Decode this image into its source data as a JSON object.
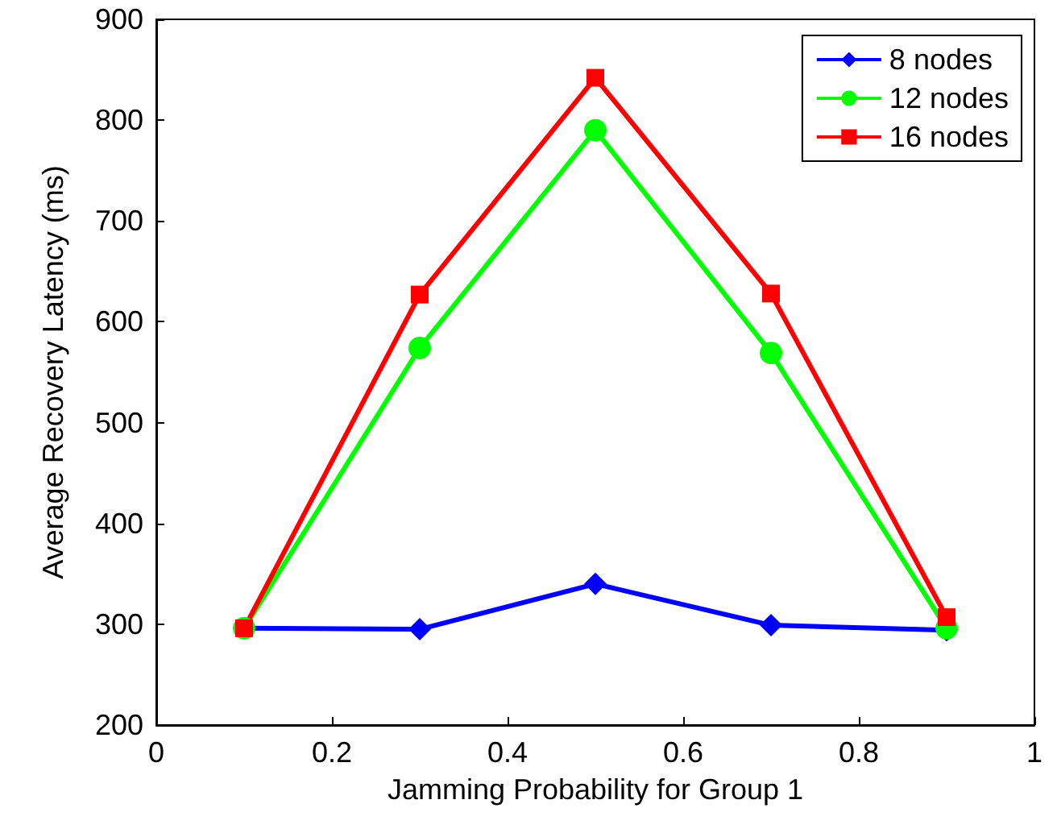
{
  "chart_data": {
    "type": "line",
    "xlabel": "Jamming Probability for Group 1",
    "ylabel": "Average Recovery Latency (ms)",
    "x": [
      0.1,
      0.3,
      0.5,
      0.7,
      0.9
    ],
    "xlim": [
      0,
      1
    ],
    "xticks": [
      0,
      0.2,
      0.4,
      0.6,
      0.8,
      1
    ],
    "ylim": [
      200,
      900
    ],
    "yticks": [
      200,
      300,
      400,
      500,
      600,
      700,
      800,
      900
    ],
    "grid": false,
    "legend": "top right",
    "line_style": "solid",
    "series": [
      {
        "name": "8 nodes",
        "color": "#0000ff",
        "marker": "diamond",
        "values": [
          296,
          295,
          340,
          299,
          294
        ]
      },
      {
        "name": "12 nodes",
        "color": "#00ff00",
        "marker": "circle",
        "values": [
          296,
          574,
          790,
          569,
          296
        ]
      },
      {
        "name": "16 nodes",
        "color": "#ff0000",
        "marker": "square",
        "values": [
          296,
          627,
          842,
          628,
          307
        ]
      }
    ]
  }
}
